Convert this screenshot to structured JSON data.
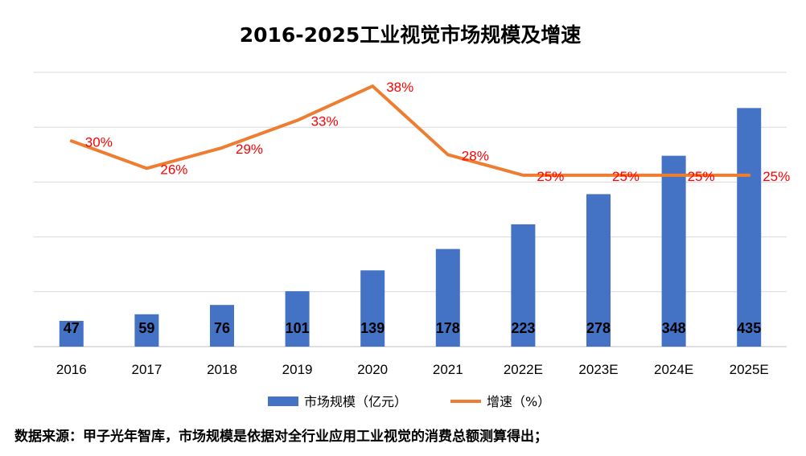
{
  "chart_data": {
    "type": "bar",
    "title": "2016-2025工业视觉市场规模及增速",
    "categories": [
      "2016",
      "2017",
      "2018",
      "2019",
      "2020",
      "2021",
      "2022E",
      "2023E",
      "2024E",
      "2025E"
    ],
    "series": [
      {
        "name": "市场规模（亿元）",
        "type": "bar",
        "axis": "left",
        "values": [
          47,
          59,
          76,
          101,
          139,
          178,
          223,
          278,
          348,
          435
        ],
        "labels": [
          "47",
          "59",
          "76",
          "101",
          "139",
          "178",
          "223",
          "278",
          "348",
          "435"
        ],
        "color": "#4472c4"
      },
      {
        "name": "增速（%）",
        "type": "line",
        "axis": "right",
        "values": [
          30,
          26,
          29,
          33,
          38,
          28,
          25,
          25,
          25,
          25
        ],
        "labels": [
          "30%",
          "26%",
          "29%",
          "33%",
          "38%",
          "28%",
          "25%",
          "25%",
          "25%",
          "25%"
        ],
        "color": "#ed7d31",
        "label_color": "#ff0000"
      }
    ],
    "ylim_left": [
      0,
      500
    ],
    "ylim_right": [
      0,
      40
    ],
    "grid": true,
    "legend": "bottom",
    "ytick_labels": "hidden"
  },
  "footnote": "数据来源：甲子光年智库，市场规模是依据对全行业应用工业视觉的消费总额测算得出；"
}
